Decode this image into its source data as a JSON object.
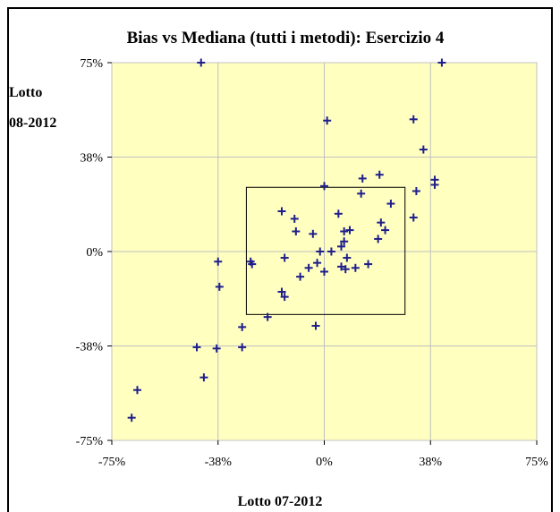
{
  "chart_data": {
    "type": "scatter",
    "title": "Bias vs Mediana (tutti i metodi): Esercizio 4",
    "xlabel": "Lotto 07-2012",
    "ylabel_lines": [
      "Lotto",
      "08-2012"
    ],
    "xlim": [
      -75,
      75
    ],
    "ylim": [
      -75,
      75
    ],
    "x_ticks": [
      {
        "value": -75,
        "label": "-75%"
      },
      {
        "value": -37.5,
        "label": "-38%"
      },
      {
        "value": 0,
        "label": "0%"
      },
      {
        "value": 37.5,
        "label": "38%"
      },
      {
        "value": 75,
        "label": "75%"
      }
    ],
    "y_ticks": [
      {
        "value": 75,
        "label": "75%"
      },
      {
        "value": 37.5,
        "label": "38%"
      },
      {
        "value": 0,
        "label": "0%"
      },
      {
        "value": -37.5,
        "label": "-38%"
      },
      {
        "value": -75,
        "label": "-75%"
      }
    ],
    "grid": true,
    "plot_background": "#ffffc0",
    "marker_color": "#1f1f8c",
    "marker": "plus",
    "reference_box": {
      "x": [
        -27.5,
        28.5
      ],
      "y": [
        -25,
        25.5
      ]
    },
    "points": [
      {
        "x": -43.5,
        "y": 75
      },
      {
        "x": 41.5,
        "y": 75
      },
      {
        "x": 1,
        "y": 52
      },
      {
        "x": 31.5,
        "y": 52.5
      },
      {
        "x": 35,
        "y": 40.5
      },
      {
        "x": 19.5,
        "y": 30.5
      },
      {
        "x": 13.5,
        "y": 29
      },
      {
        "x": 39,
        "y": 28.5
      },
      {
        "x": 39,
        "y": 26.5
      },
      {
        "x": 0,
        "y": 26
      },
      {
        "x": 32.5,
        "y": 24
      },
      {
        "x": 13,
        "y": 23
      },
      {
        "x": 23.5,
        "y": 19
      },
      {
        "x": -15,
        "y": 16
      },
      {
        "x": 5,
        "y": 15
      },
      {
        "x": -10.5,
        "y": 13
      },
      {
        "x": 31.5,
        "y": 13.5
      },
      {
        "x": 20,
        "y": 11.5
      },
      {
        "x": 21.5,
        "y": 8.5
      },
      {
        "x": -10,
        "y": 8
      },
      {
        "x": 9,
        "y": 8.5
      },
      {
        "x": 7,
        "y": 8
      },
      {
        "x": -4,
        "y": 7
      },
      {
        "x": 19,
        "y": 5
      },
      {
        "x": 7,
        "y": 4
      },
      {
        "x": 6,
        "y": 2
      },
      {
        "x": -1.5,
        "y": 0
      },
      {
        "x": 2.5,
        "y": 0
      },
      {
        "x": -14,
        "y": -2.5
      },
      {
        "x": 8,
        "y": -2.5
      },
      {
        "x": -37.5,
        "y": -4
      },
      {
        "x": -26,
        "y": -4
      },
      {
        "x": -25.5,
        "y": -5
      },
      {
        "x": -2.5,
        "y": -4.5
      },
      {
        "x": 15.5,
        "y": -5
      },
      {
        "x": 6,
        "y": -6
      },
      {
        "x": -5.5,
        "y": -6.5
      },
      {
        "x": 11,
        "y": -6.5
      },
      {
        "x": 7.5,
        "y": -7
      },
      {
        "x": 0,
        "y": -8
      },
      {
        "x": -8.5,
        "y": -10
      },
      {
        "x": -37,
        "y": -14
      },
      {
        "x": -15,
        "y": -16
      },
      {
        "x": -14,
        "y": -18
      },
      {
        "x": -20,
        "y": -26
      },
      {
        "x": -29,
        "y": -30
      },
      {
        "x": -3,
        "y": -29.5
      },
      {
        "x": -45,
        "y": -38
      },
      {
        "x": -38,
        "y": -38.5
      },
      {
        "x": -29,
        "y": -38
      },
      {
        "x": -42.5,
        "y": -50
      },
      {
        "x": -66,
        "y": -55
      },
      {
        "x": -68,
        "y": -66
      }
    ]
  }
}
